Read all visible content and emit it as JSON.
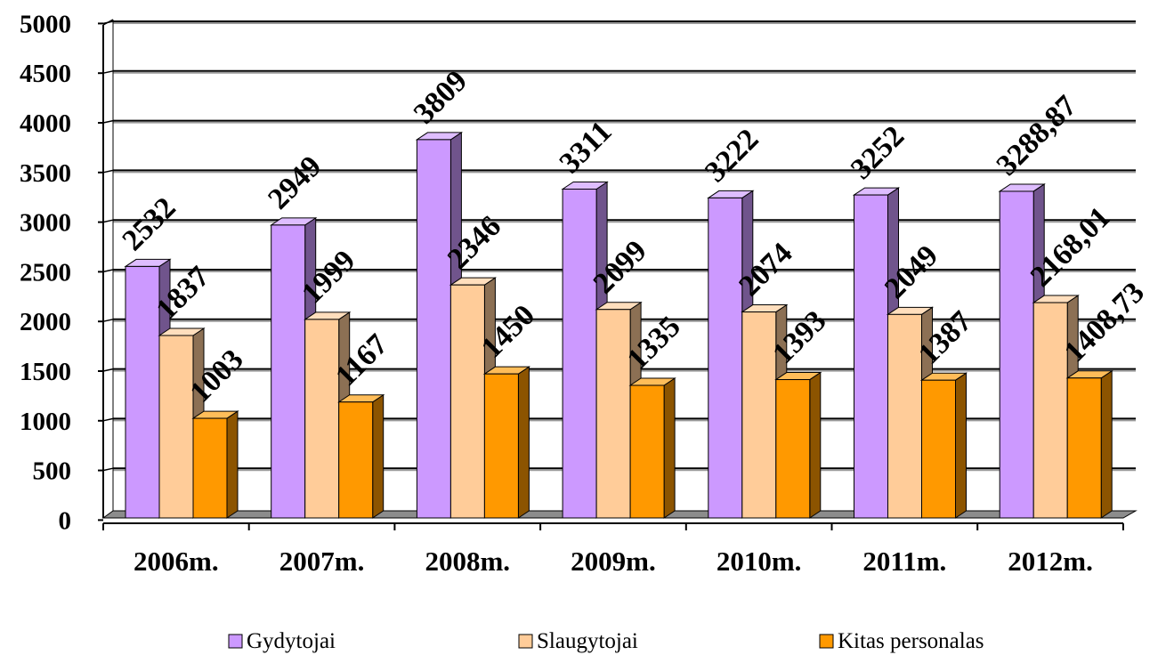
{
  "chart_data": {
    "type": "bar",
    "title": "",
    "xlabel": "",
    "ylabel": "",
    "ylim": [
      0,
      5000
    ],
    "y_ticks": [
      "0",
      "500",
      "1000",
      "1500",
      "2000",
      "2500",
      "3000",
      "3500",
      "4000",
      "4500",
      "5000"
    ],
    "grid": true,
    "legend_position": "bottom",
    "categories": [
      "2006m.",
      "2007m.",
      "2008m.",
      "2009m.",
      "2010m.",
      "2011m.",
      "2012m."
    ],
    "series": [
      {
        "name": "Gydytojai",
        "color": "#CC99FF",
        "values": [
          2532,
          2949,
          3809,
          3311,
          3222,
          3252,
          3288.87
        ],
        "labels": [
          "2532",
          "2949",
          "3809",
          "3311",
          "3222",
          "3252",
          "3288,87"
        ]
      },
      {
        "name": "Slaugytojai",
        "color": "#FFCC99",
        "values": [
          1837,
          1999,
          2346,
          2099,
          2074,
          2049,
          2168.01
        ],
        "labels": [
          "1837",
          "1999",
          "2346",
          "2099",
          "2074",
          "2049",
          "2168,01"
        ]
      },
      {
        "name": "Kitas personalas",
        "color": "#FF9900",
        "values": [
          1003,
          1167,
          1450,
          1335,
          1393,
          1387,
          1408.73
        ],
        "labels": [
          "1003",
          "1167",
          "1450",
          "1335",
          "1393",
          "1387",
          "1408,73"
        ]
      }
    ]
  }
}
